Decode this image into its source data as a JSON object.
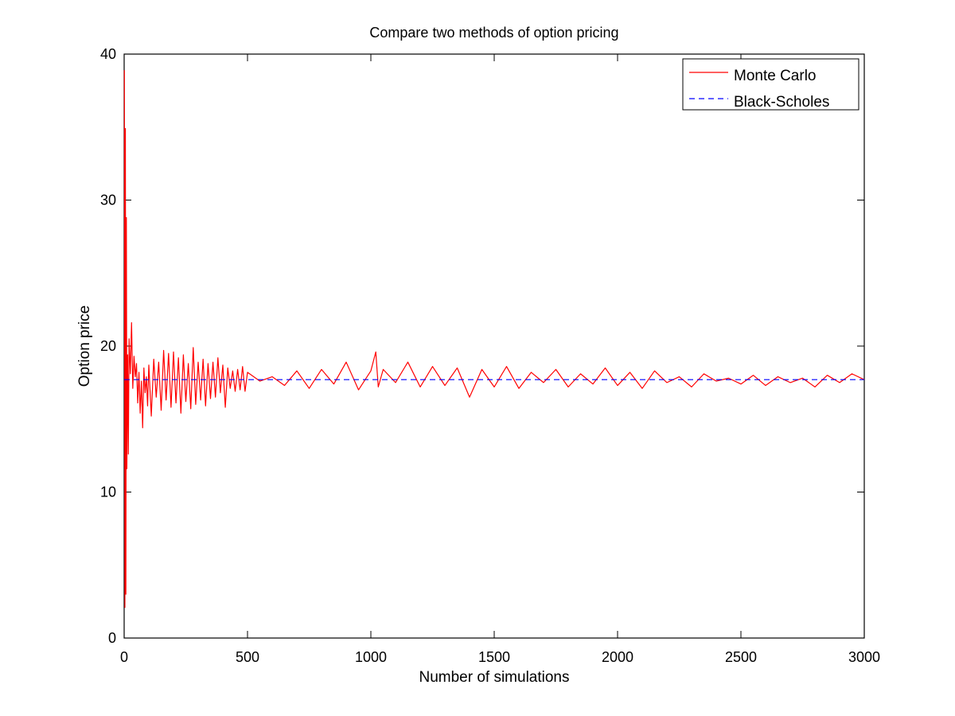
{
  "chart_data": {
    "type": "line",
    "title": "Compare two methods of option pricing",
    "xlabel": "Number of simulations",
    "ylabel": "Option price",
    "xlim": [
      0,
      3000
    ],
    "ylim": [
      0,
      40
    ],
    "xticks": [
      0,
      500,
      1000,
      1500,
      2000,
      2500,
      3000
    ],
    "yticks": [
      0,
      10,
      20,
      30,
      40
    ],
    "xtick_labels": [
      "0",
      "500",
      "1000",
      "1500",
      "2000",
      "2500",
      "3000"
    ],
    "ytick_labels": [
      "0",
      "10",
      "20",
      "30",
      "40"
    ],
    "grid": false,
    "legend_position": "top-right",
    "series": [
      {
        "name": "Monte Carlo",
        "color": "#ff0000",
        "style": "solid",
        "x": [
          1,
          3,
          5,
          7,
          9,
          11,
          14,
          17,
          20,
          25,
          30,
          35,
          40,
          45,
          50,
          55,
          60,
          65,
          70,
          75,
          80,
          85,
          90,
          95,
          100,
          110,
          120,
          130,
          140,
          150,
          160,
          170,
          180,
          190,
          200,
          210,
          220,
          230,
          240,
          250,
          260,
          270,
          280,
          290,
          300,
          310,
          320,
          330,
          340,
          350,
          360,
          370,
          380,
          390,
          400,
          410,
          420,
          430,
          440,
          450,
          460,
          470,
          480,
          490,
          500,
          550,
          600,
          650,
          700,
          750,
          800,
          850,
          900,
          950,
          1000,
          1020,
          1030,
          1050,
          1100,
          1150,
          1200,
          1250,
          1300,
          1350,
          1400,
          1450,
          1500,
          1550,
          1600,
          1650,
          1700,
          1750,
          1800,
          1850,
          1900,
          1950,
          2000,
          2050,
          2100,
          2150,
          2200,
          2250,
          2300,
          2350,
          2400,
          2450,
          2500,
          2550,
          2600,
          2650,
          2700,
          2750,
          2800,
          2850,
          2900,
          2950,
          3000
        ],
        "y": [
          38.9,
          2.1,
          34.9,
          3.0,
          28.8,
          11.6,
          19.4,
          12.6,
          20.5,
          18.1,
          21.6,
          17.1,
          19.3,
          17.9,
          18.8,
          16.1,
          18.2,
          15.4,
          17.6,
          14.4,
          18.5,
          16.8,
          17.9,
          15.9,
          18.7,
          15.2,
          19.1,
          16.5,
          18.9,
          15.6,
          19.7,
          16.3,
          19.5,
          15.8,
          19.6,
          16.1,
          19.2,
          15.4,
          19.4,
          16.2,
          18.8,
          15.7,
          19.9,
          16.0,
          18.9,
          16.3,
          19.1,
          15.9,
          18.8,
          16.4,
          18.9,
          16.5,
          19.2,
          16.8,
          18.7,
          15.8,
          18.5,
          17.1,
          18.3,
          16.9,
          18.4,
          17.0,
          18.6,
          16.9,
          18.2,
          17.6,
          17.9,
          17.3,
          18.3,
          17.1,
          18.4,
          17.4,
          18.9,
          17.0,
          18.3,
          19.6,
          17.2,
          18.4,
          17.5,
          18.9,
          17.2,
          18.6,
          17.3,
          18.5,
          16.5,
          18.4,
          17.2,
          18.6,
          17.1,
          18.2,
          17.5,
          18.4,
          17.2,
          18.1,
          17.4,
          18.5,
          17.3,
          18.2,
          17.1,
          18.3,
          17.5,
          17.9,
          17.2,
          18.1,
          17.6,
          17.8,
          17.4,
          18.0,
          17.3,
          17.9,
          17.5,
          17.8,
          17.2,
          18.0,
          17.5,
          18.1,
          17.7
        ]
      },
      {
        "name": "Black-Scholes",
        "color": "#0000ff",
        "style": "dashed",
        "x": [
          0,
          3000
        ],
        "y": [
          17.7,
          17.7
        ]
      }
    ]
  }
}
